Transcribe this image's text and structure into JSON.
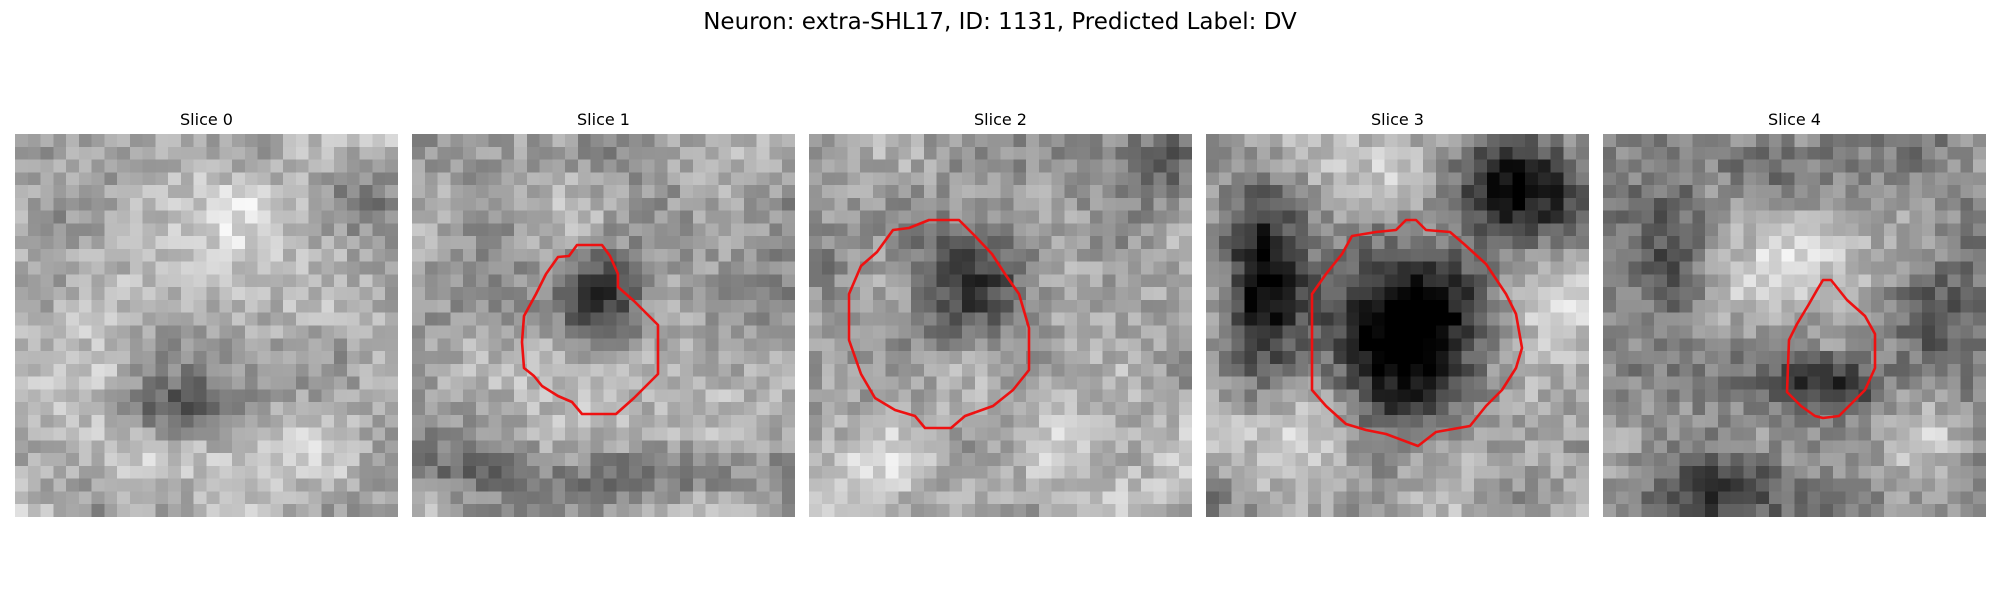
{
  "figure": {
    "title": "Neuron: extra-SHL17, ID: 1131, Predicted Label: DV"
  },
  "colors": {
    "contour": "#ee1111",
    "background": "#ffffff"
  },
  "panels": [
    {
      "title": "Slice 0",
      "has_contour": false
    },
    {
      "title": "Slice 1",
      "has_contour": true
    },
    {
      "title": "Slice 2",
      "has_contour": true
    },
    {
      "title": "Slice 3",
      "has_contour": true
    },
    {
      "title": "Slice 4",
      "has_contour": true
    }
  ]
}
